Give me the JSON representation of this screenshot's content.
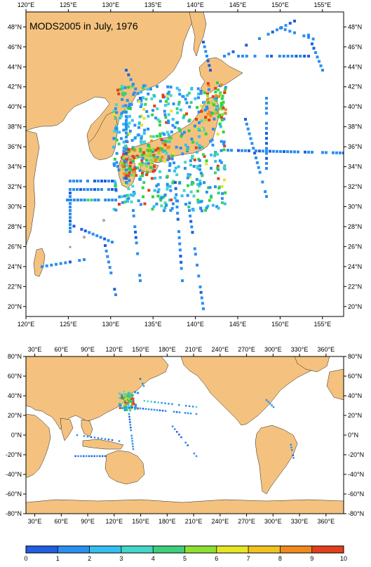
{
  "title": "MODS2005 in July, 1976",
  "top_map": {
    "lon_labels": [
      "120°E",
      "125°E",
      "130°E",
      "135°E",
      "140°E",
      "145°E",
      "150°E",
      "155°E"
    ],
    "lon_values": [
      120,
      125,
      130,
      135,
      140,
      145,
      150,
      155
    ],
    "lat_labels": [
      "20°N",
      "22°N",
      "24°N",
      "26°N",
      "28°N",
      "30°N",
      "32°N",
      "34°N",
      "36°N",
      "38°N",
      "40°N",
      "42°N",
      "44°N",
      "46°N",
      "48°N"
    ],
    "lat_values": [
      20,
      22,
      24,
      26,
      28,
      30,
      32,
      34,
      36,
      38,
      40,
      42,
      44,
      46,
      48
    ],
    "extent": {
      "lon_min": 120,
      "lon_max": 157.5,
      "lat_min": 19,
      "lat_max": 49.5
    }
  },
  "bottom_map": {
    "lon_labels": [
      "30°E",
      "60°E",
      "90°E",
      "120°E",
      "150°E",
      "180°E",
      "210°E",
      "240°E",
      "270°E",
      "300°E",
      "330°E",
      "360°E"
    ],
    "lon_values": [
      30,
      60,
      90,
      120,
      150,
      180,
      210,
      240,
      270,
      300,
      330,
      360
    ],
    "lat_labels": [
      "-80°N",
      "-60°N",
      "-40°N",
      "-20°N",
      "0°N",
      "20°N",
      "40°N",
      "60°N",
      "80°N"
    ],
    "lat_values": [
      -80,
      -60,
      -40,
      -20,
      0,
      20,
      40,
      60,
      80
    ],
    "extent": {
      "lon_min": 20,
      "lon_max": 380,
      "lat_min": -80,
      "lat_max": 80
    }
  },
  "colorbar": {
    "labels": [
      "0",
      "1",
      "2",
      "3",
      "4",
      "5",
      "6",
      "7",
      "8",
      "9",
      "10"
    ],
    "colors": [
      "#1f5fe0",
      "#2a8ff0",
      "#33c0f0",
      "#44d6c8",
      "#3ecf7a",
      "#2fd43c",
      "#8ee030",
      "#e6e623",
      "#f2c21f",
      "#f08a1e",
      "#e2401a"
    ]
  },
  "colors": {
    "land": "#f4c27e",
    "ocean": "#ffffff"
  }
}
